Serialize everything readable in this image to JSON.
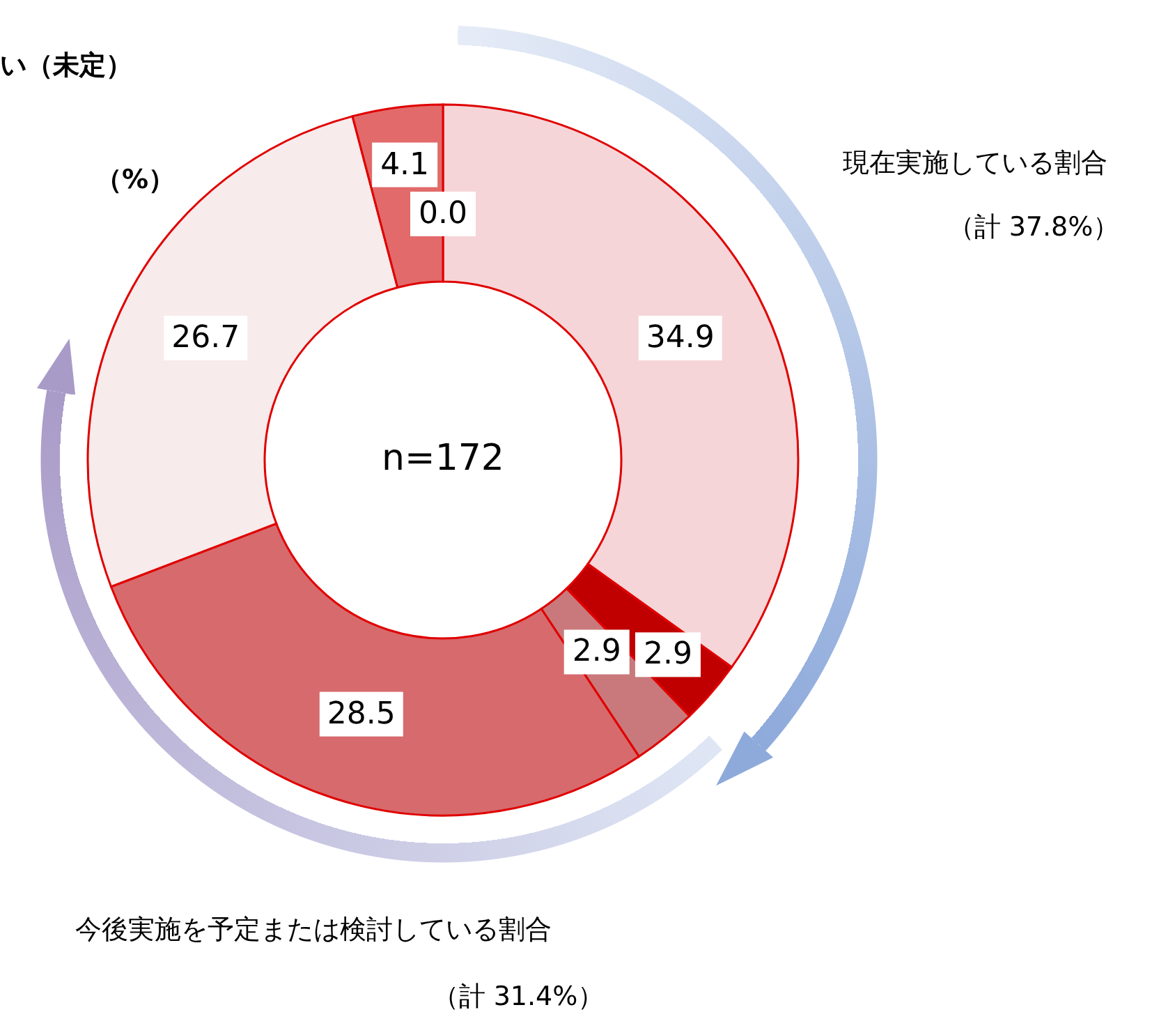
{
  "chart_data": {
    "type": "donut",
    "categories": [
      null,
      null,
      null,
      null,
      null,
      null,
      null
    ],
    "values": [
      34.9,
      2.9,
      2.9,
      28.5,
      26.7,
      4.1,
      0.0
    ],
    "colors": [
      "#f5d5d8",
      "#c00000",
      "#c9797b",
      "#d76a6d",
      "#f7ebeb",
      "#e26a6a",
      "#f3c4c4"
    ],
    "value_labels": [
      "34.9",
      "2.9",
      "2.9",
      "28.5",
      "26.7",
      "4.1",
      "0.0"
    ],
    "annotations": [
      "い（未定）",
      "（%）",
      "現在実施している割合",
      "（計 37.8%）",
      "今後実施を予定または検討している割合",
      "（計 31.4%）",
      "n=172"
    ]
  }
}
